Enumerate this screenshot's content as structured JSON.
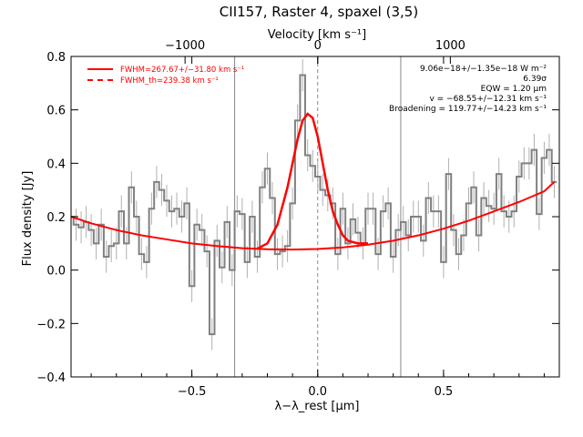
{
  "chart_data": {
    "type": "line",
    "title": "CII157, Raster 4, spaxel (3,5)",
    "xlabel": "λ−λ_rest [μm]",
    "ylabel": "Flux density [Jy]",
    "top_xlabel": "Velocity [km s⁻¹]",
    "xlim": [
      -0.98,
      0.96
    ],
    "ylim": [
      -0.4,
      0.8
    ],
    "x_ticks": [
      -0.5,
      0.0,
      0.5
    ],
    "x_tick_labels": [
      "−0.5",
      "0.0",
      "0.5"
    ],
    "y_ticks": [
      -0.4,
      -0.2,
      0.0,
      0.2,
      0.4,
      0.6,
      0.8
    ],
    "y_tick_labels": [
      "−0.4",
      "−0.2",
      "0.0",
      "0.2",
      "0.4",
      "0.6",
      "0.8"
    ],
    "top_ticks_kms": [
      -1000,
      0,
      1000
    ],
    "top_tick_labels": [
      "−1000",
      "0",
      "1000"
    ],
    "fwhm_lines_x": [
      -0.33,
      0.33
    ],
    "rest_line_x": 0.0,
    "legend": {
      "placement": "top-left",
      "entries": [
        {
          "label": "FWHM=267.67+/−31.80 km s⁻¹",
          "style": "solid",
          "color": "#ff0000"
        },
        {
          "label": "FWHM_th=239.38 km s⁻¹",
          "style": "dashed",
          "color": "#ff0000"
        }
      ]
    },
    "annotations": [
      "9.06e−18+/−1.35e−18 W m⁻²",
      "6.39σ",
      "EQW = 1.20 μm",
      "v = −68.55+/−12.31 km s⁻¹",
      "Broadening = 119.77+/−14.23 km s⁻¹"
    ],
    "series": [
      {
        "name": "Spectrum",
        "style": "step",
        "color": "#808080",
        "x": [
          -0.98,
          -0.96,
          -0.94,
          -0.92,
          -0.9,
          -0.88,
          -0.86,
          -0.84,
          -0.82,
          -0.8,
          -0.78,
          -0.76,
          -0.74,
          -0.72,
          -0.7,
          -0.68,
          -0.66,
          -0.64,
          -0.62,
          -0.6,
          -0.58,
          -0.56,
          -0.54,
          -0.52,
          -0.5,
          -0.48,
          -0.46,
          -0.44,
          -0.42,
          -0.4,
          -0.38,
          -0.36,
          -0.34,
          -0.32,
          -0.3,
          -0.28,
          -0.26,
          -0.24,
          -0.22,
          -0.2,
          -0.18,
          -0.16,
          -0.14,
          -0.12,
          -0.1,
          -0.08,
          -0.06,
          -0.04,
          -0.02,
          0.0,
          0.02,
          0.04,
          0.06,
          0.08,
          0.1,
          0.12,
          0.14,
          0.16,
          0.18,
          0.2,
          0.22,
          0.24,
          0.26,
          0.28,
          0.3,
          0.32,
          0.34,
          0.36,
          0.38,
          0.4,
          0.42,
          0.44,
          0.46,
          0.48,
          0.5,
          0.52,
          0.54,
          0.56,
          0.58,
          0.6,
          0.62,
          0.64,
          0.66,
          0.68,
          0.7,
          0.72,
          0.74,
          0.76,
          0.78,
          0.8,
          0.82,
          0.84,
          0.86,
          0.88,
          0.9,
          0.92,
          0.94
        ],
        "y": [
          0.2,
          0.17,
          0.16,
          0.18,
          0.15,
          0.1,
          0.17,
          0.05,
          0.09,
          0.1,
          0.22,
          0.1,
          0.31,
          0.2,
          0.06,
          0.03,
          0.23,
          0.33,
          0.3,
          0.26,
          0.22,
          0.23,
          0.2,
          0.25,
          -0.06,
          0.17,
          0.15,
          0.07,
          -0.24,
          0.11,
          0.01,
          0.18,
          0.0,
          0.22,
          0.21,
          0.03,
          0.2,
          0.05,
          0.31,
          0.38,
          0.27,
          0.06,
          0.07,
          0.09,
          0.25,
          0.56,
          0.73,
          0.43,
          0.39,
          0.35,
          0.3,
          0.28,
          0.25,
          0.06,
          0.23,
          0.1,
          0.19,
          0.14,
          0.1,
          0.23,
          0.23,
          0.06,
          0.22,
          0.25,
          0.05,
          0.15,
          0.18,
          0.13,
          0.2,
          0.2,
          0.11,
          0.27,
          0.22,
          0.22,
          0.03,
          0.36,
          0.15,
          0.06,
          0.13,
          0.25,
          0.31,
          0.13,
          0.27,
          0.24,
          0.23,
          0.36,
          0.22,
          0.2,
          0.22,
          0.35,
          0.4,
          0.4,
          0.45,
          0.21,
          0.42,
          0.45,
          0.33
        ],
        "errors": 0.06
      },
      {
        "name": "Continuum",
        "style": "smooth",
        "color": "#ff0000",
        "x": [
          -0.98,
          -0.9,
          -0.8,
          -0.7,
          -0.6,
          -0.5,
          -0.4,
          -0.3,
          -0.2,
          -0.1,
          0.0,
          0.1,
          0.2,
          0.3,
          0.4,
          0.5,
          0.6,
          0.7,
          0.8,
          0.9,
          0.94
        ],
        "y": [
          0.2,
          0.175,
          0.15,
          0.13,
          0.115,
          0.1,
          0.09,
          0.082,
          0.078,
          0.077,
          0.079,
          0.085,
          0.095,
          0.11,
          0.13,
          0.155,
          0.185,
          0.22,
          0.255,
          0.295,
          0.33
        ]
      },
      {
        "name": "Gaussian fit",
        "style": "smooth",
        "color": "#ff0000",
        "x": [
          -0.24,
          -0.2,
          -0.16,
          -0.12,
          -0.1,
          -0.08,
          -0.06,
          -0.04,
          -0.02,
          0.0,
          0.02,
          0.04,
          0.06,
          0.08,
          0.1,
          0.12,
          0.16,
          0.2
        ],
        "y": [
          0.08,
          0.1,
          0.17,
          0.31,
          0.4,
          0.49,
          0.56,
          0.585,
          0.57,
          0.5,
          0.4,
          0.3,
          0.22,
          0.17,
          0.13,
          0.11,
          0.1,
          0.1
        ]
      }
    ]
  }
}
